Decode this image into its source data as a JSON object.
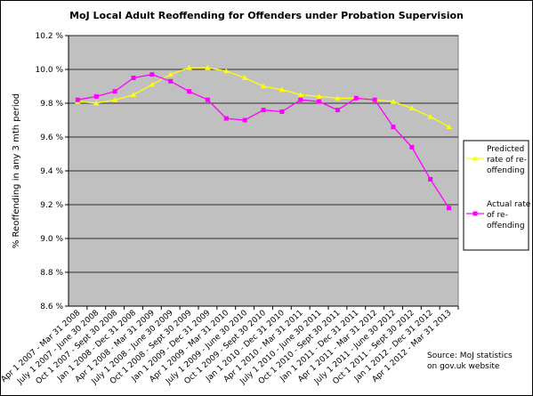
{
  "chart_data": {
    "type": "line",
    "title": "MoJ Local Adult Reoffending for Offenders under Probation Supervision",
    "xlabel": "",
    "ylabel": "% Reoffending in any 3 mth period",
    "ylim": [
      8.6,
      10.2
    ],
    "y_ticks": [
      "8.6 %",
      "8.8 %",
      "9.0 %",
      "9.2 %",
      "9.4 %",
      "9.6 %",
      "9.8 %",
      "10.0 %",
      "10.2 %"
    ],
    "grid": "horizontal",
    "legend_position": "right",
    "categories": [
      "Apr 1 2007 - Mar 31 2008",
      "July 1 2007 - June 30 2008",
      "Oct 1 2007 - Sept 30 2008",
      "Jan 1 2008 - Dec 31 2008",
      "Apr 1 2008 - Mar 31 2009",
      "July 1 2008 - June 30 2009",
      "Oct 1 2008 - Sept 30 2009",
      "Jan 1 2009 - Dec 31 2009",
      "Apr 1 2009 - Mar 31 2010",
      "July 1 2009 - June 30 2010",
      "Oct 1 2009 - Sept 30 2010",
      "Jan 1 2010 - Dec 31 2010",
      "Apr 1 2010 - Mar 31 2011",
      "July 1 2010 - June 30 2011",
      "Oct 1 2010 - Sept 30 2011",
      "Jan 1 2011 - Dec 31 2011",
      "Apr 1 2011 - Mar 31 2012",
      "July 1 2011 - June 30 2012",
      "Oct 1 2011 - Sept 30 2012",
      "Jan 1 2012 - Dec 31 2012",
      "Apr 1 2012 - Mar 31 2013"
    ],
    "series": [
      {
        "name": "Predicted rate of re-offending",
        "legend_lines": [
          "Predicted",
          "rate of re-",
          "offending"
        ],
        "color": "#ffff00",
        "marker": "triangle",
        "values": [
          9.81,
          9.8,
          9.82,
          9.85,
          9.91,
          9.97,
          10.01,
          10.01,
          9.99,
          9.95,
          9.9,
          9.88,
          9.85,
          9.84,
          9.83,
          9.83,
          9.82,
          9.81,
          9.77,
          9.72,
          9.66
        ]
      },
      {
        "name": "Actual rate of re-offending",
        "legend_lines": [
          "Actual rate",
          "of re-",
          "offending"
        ],
        "color": "#ff00ff",
        "marker": "square",
        "values": [
          9.82,
          9.84,
          9.87,
          9.95,
          9.97,
          9.93,
          9.87,
          9.82,
          9.71,
          9.7,
          9.76,
          9.75,
          9.82,
          9.81,
          9.76,
          9.83,
          9.82,
          9.66,
          9.54,
          9.35,
          9.18
        ]
      }
    ],
    "source_note": [
      "Source: MoJ statistics",
      "on gov.uk website"
    ]
  }
}
